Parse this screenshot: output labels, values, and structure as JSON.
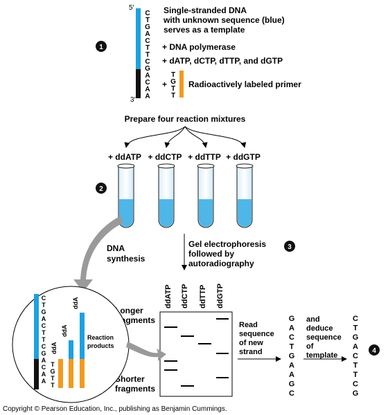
{
  "colors": {
    "template_strand": "#1ba1e2",
    "template_known": "#111111",
    "primer": "#f39a1e",
    "tube_liquid": "#4fb6e8",
    "arrow_gray": "#9a9a9a"
  },
  "step_numbers": [
    "1",
    "2",
    "3",
    "4"
  ],
  "step1": {
    "five_prime": "5′",
    "three_prime": "3′",
    "template_bases": [
      "C",
      "T",
      "G",
      "A",
      "C",
      "T",
      "T",
      "C",
      "G",
      "A",
      "C",
      "A",
      "A"
    ],
    "description_line1": "Single-stranded DNA",
    "description_line2": "with unknown sequence (blue)",
    "description_line3": "serves as a template",
    "polymerase": "+ DNA polymerase",
    "dntps": "+ dATP, dCTP, dTTP, and dGTP",
    "primer_plus": "+",
    "primer_bases": [
      "T",
      "G",
      "T",
      "T"
    ],
    "primer_label": "Radioactively labeled primer"
  },
  "step2": {
    "heading": "Prepare four reaction mixtures",
    "tube_labels": [
      "+ ddATP",
      "+ ddCTP",
      "+ ddTTP",
      "+ ddGTP"
    ],
    "synthesis_line1": "DNA",
    "synthesis_line2": "synthesis"
  },
  "products": {
    "template_bases": [
      "C",
      "T",
      "G",
      "A",
      "C",
      "T",
      "T",
      "C",
      "G",
      "A",
      "C",
      "A",
      "A"
    ],
    "dda_labels": [
      "ddA",
      "ddA",
      "ddA"
    ],
    "primer_bases": [
      "T",
      "G",
      "T",
      "T"
    ],
    "label_line1": "Reaction",
    "label_line2": "products"
  },
  "step3": {
    "gel_line1": "Gel electrophoresis",
    "gel_line2": "followed by",
    "gel_line3": "autoradiography",
    "lane_labels": [
      "ddATP",
      "ddCTP",
      "ddTTP",
      "ddGTP"
    ],
    "longer_line1": "Longer",
    "longer_line2": "fragments",
    "shorter_line1": "Shorter",
    "shorter_line2": "fragments"
  },
  "step4": {
    "read_line1": "Read",
    "read_line2": "sequence",
    "read_line3": "of new",
    "read_line4": "strand",
    "new_strand": [
      "G",
      "A",
      "C",
      "T",
      "G",
      "A",
      "A",
      "G",
      "C"
    ],
    "deduce_line1": "and",
    "deduce_line2": "deduce",
    "deduce_line3": "sequence",
    "deduce_line4": "of",
    "deduce_line5": "template",
    "template_sequence": [
      "C",
      "T",
      "G",
      "A",
      "C",
      "T",
      "T",
      "C",
      "G"
    ]
  },
  "copyright": "Copyright © Pearson Education, Inc., publishing as Benjamin Cummings."
}
